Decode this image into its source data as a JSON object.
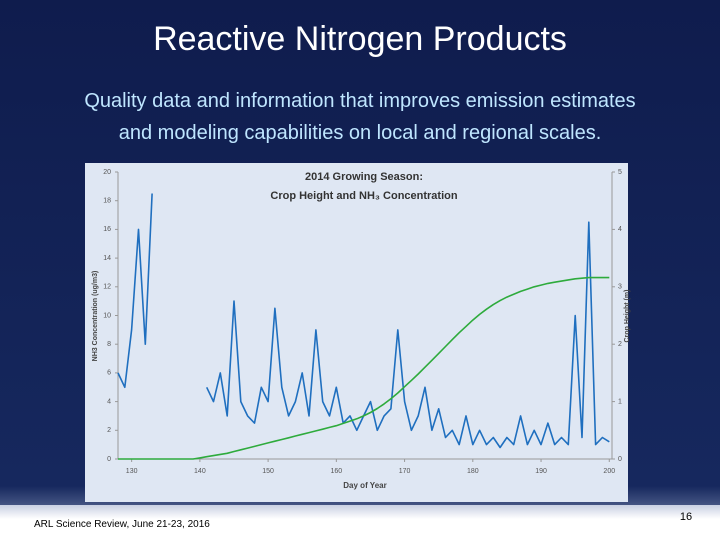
{
  "header": {
    "title": "Reactive Nitrogen Products",
    "subtitle_lines": [
      "Quality data and information that improves emission estimates",
      "and modeling capabilities on local and regional scales."
    ]
  },
  "footer": {
    "text": "ARL Science Review, June 21-23, 2016",
    "page": "16"
  },
  "chart_data": {
    "type": "line",
    "title_lines": [
      "2014 Growing Season:",
      "Crop Height and NH₃ Concentration"
    ],
    "x_label": "Day of Year",
    "y_label": "NH3 Concentration (ug/m3)",
    "y2_label": "Crop Height (m)",
    "x": [
      128,
      129,
      130,
      131,
      132,
      133,
      134,
      135,
      136,
      137,
      138,
      139,
      140,
      141,
      142,
      143,
      144,
      145,
      146,
      147,
      148,
      149,
      150,
      151,
      152,
      153,
      154,
      155,
      156,
      157,
      158,
      159,
      160,
      161,
      162,
      163,
      164,
      165,
      166,
      167,
      168,
      169,
      170,
      171,
      172,
      173,
      174,
      175,
      176,
      177,
      178,
      179,
      180,
      181,
      182,
      183,
      184,
      185,
      186,
      187,
      188,
      189,
      190,
      191,
      192,
      193,
      194,
      195,
      196,
      197,
      198,
      199,
      200
    ],
    "series": [
      {
        "name": "NH3 Concentration",
        "color": "#1f6fbf",
        "values": [
          6,
          5,
          9,
          16,
          8,
          18.5,
          null,
          null,
          null,
          null,
          null,
          null,
          null,
          5,
          4,
          6,
          3,
          11,
          4,
          3,
          2.5,
          5,
          4,
          10.5,
          5,
          3,
          4,
          6,
          3,
          9,
          4,
          3,
          5,
          2.5,
          3,
          2,
          3,
          4,
          2,
          3,
          3.5,
          9,
          4,
          2,
          3,
          5,
          2,
          3.5,
          1.5,
          2,
          1,
          3,
          1,
          2,
          1,
          1.5,
          0.8,
          1.5,
          1,
          3,
          1,
          2,
          1,
          2.5,
          1,
          1.5,
          1,
          10,
          1.5,
          16.5,
          1,
          1.5,
          1.2
        ]
      },
      {
        "name": "Crop Height",
        "color": "#2eab3c",
        "axis": "y2",
        "values": [
          0,
          0,
          0,
          0,
          0,
          0,
          0,
          0,
          0,
          0,
          0,
          0,
          0.02,
          0.04,
          0.06,
          0.08,
          0.1,
          0.13,
          0.16,
          0.19,
          0.22,
          0.25,
          0.28,
          0.31,
          0.34,
          0.37,
          0.4,
          0.43,
          0.46,
          0.49,
          0.52,
          0.55,
          0.58,
          0.62,
          0.66,
          0.7,
          0.75,
          0.81,
          0.88,
          0.96,
          1.05,
          1.15,
          1.26,
          1.37,
          1.48,
          1.6,
          1.72,
          1.84,
          1.96,
          2.08,
          2.2,
          2.31,
          2.42,
          2.52,
          2.61,
          2.69,
          2.76,
          2.82,
          2.87,
          2.92,
          2.96,
          3.0,
          3.03,
          3.06,
          3.08,
          3.1,
          3.12,
          3.14,
          3.15,
          3.16,
          3.16,
          3.16,
          3.16
        ]
      }
    ],
    "xlim": [
      128,
      200.4
    ],
    "xticks": [
      130,
      140,
      150,
      160,
      170,
      180,
      190,
      200
    ],
    "ylim": [
      0,
      20
    ],
    "yticks": [
      0,
      2,
      4,
      6,
      8,
      10,
      12,
      14,
      16,
      18,
      20
    ],
    "y2lim": [
      0,
      5
    ],
    "y2ticks": [
      0,
      1,
      2,
      3,
      4,
      5
    ]
  }
}
